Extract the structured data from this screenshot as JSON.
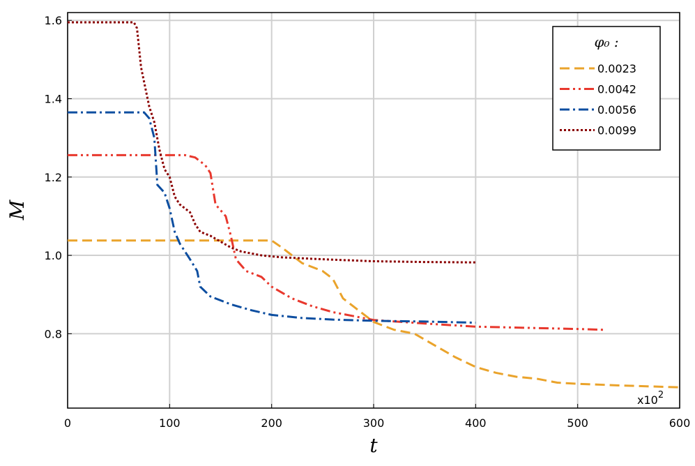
{
  "chart_data": {
    "type": "line",
    "xlabel": "t",
    "ylabel": "M",
    "x_multiplier": {
      "base": "x10",
      "exponent": "2"
    },
    "legend_title": "φ₀ :",
    "legend": "top-right",
    "grid": true,
    "xlim": [
      0,
      600
    ],
    "ylim": [
      0.61,
      1.62
    ],
    "xticks": [
      0,
      100,
      200,
      300,
      400,
      500,
      600
    ],
    "yticks": [
      0.8,
      {
        "value": 1,
        "label": "1.0"
      },
      1.2,
      1.4,
      1.6
    ],
    "series": [
      {
        "name": "0.0023",
        "color": "#eaa32b",
        "linestyle": "dash",
        "x": [
          0,
          200,
          210,
          230,
          250,
          260,
          270,
          285,
          300,
          320,
          340,
          360,
          380,
          400,
          420,
          440,
          460,
          480,
          500,
          540,
          600
        ],
        "values": [
          1.038,
          1.038,
          1.02,
          0.98,
          0.96,
          0.94,
          0.89,
          0.86,
          0.83,
          0.81,
          0.8,
          0.77,
          0.74,
          0.715,
          0.7,
          0.69,
          0.685,
          0.675,
          0.672,
          0.668,
          0.663
        ]
      },
      {
        "name": "0.0042",
        "color": "#e8382d",
        "linestyle": "dashdotdot",
        "x": [
          0,
          115,
          125,
          135,
          140,
          145,
          155,
          160,
          165,
          175,
          190,
          200,
          220,
          240,
          260,
          280,
          300,
          350,
          400,
          450,
          500,
          525
        ],
        "values": [
          1.256,
          1.256,
          1.25,
          1.23,
          1.21,
          1.13,
          1.1,
          1.05,
          0.99,
          0.96,
          0.945,
          0.92,
          0.89,
          0.87,
          0.855,
          0.845,
          0.835,
          0.826,
          0.818,
          0.815,
          0.812,
          0.81
        ]
      },
      {
        "name": "0.0056",
        "color": "#0d4ea0",
        "linestyle": "dashdot",
        "x": [
          0,
          75,
          80,
          85,
          88,
          95,
          100,
          105,
          110,
          120,
          127,
          130,
          140,
          160,
          180,
          200,
          230,
          260,
          300,
          350,
          400
        ],
        "values": [
          1.365,
          1.365,
          1.35,
          1.3,
          1.18,
          1.16,
          1.12,
          1.06,
          1.03,
          0.99,
          0.96,
          0.92,
          0.895,
          0.875,
          0.86,
          0.848,
          0.84,
          0.836,
          0.833,
          0.831,
          0.828
        ]
      },
      {
        "name": "0.0099",
        "color": "#8b0000",
        "linestyle": "dot",
        "x": [
          0,
          65,
          68,
          72,
          76,
          80,
          85,
          90,
          95,
          100,
          105,
          110,
          120,
          125,
          130,
          140,
          150,
          160,
          170,
          190,
          210,
          250,
          300,
          350,
          400
        ],
        "values": [
          1.595,
          1.595,
          1.58,
          1.48,
          1.43,
          1.38,
          1.34,
          1.27,
          1.22,
          1.2,
          1.15,
          1.13,
          1.11,
          1.08,
          1.06,
          1.05,
          1.035,
          1.02,
          1.01,
          1.0,
          0.995,
          0.99,
          0.985,
          0.983,
          0.982
        ]
      }
    ]
  }
}
